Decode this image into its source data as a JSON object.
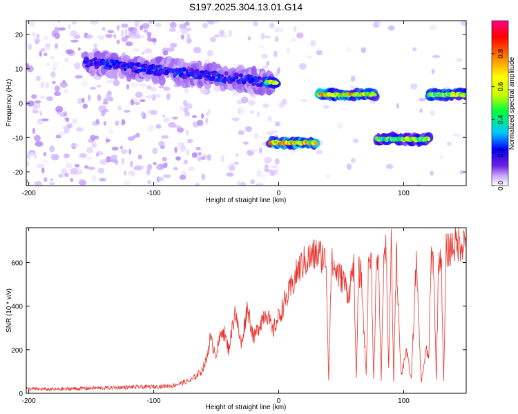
{
  "title": "S197.2025.304.13.01.G14",
  "chart_data": [
    {
      "type": "heatmap",
      "name": "spectrogram",
      "xlabel": "Height of straight line (km)",
      "ylabel": "Frequency (Hz)",
      "xlim": [
        -202,
        150
      ],
      "ylim": [
        -24,
        24
      ],
      "x_ticks": [
        -200,
        -100,
        0,
        100
      ],
      "y_ticks": [
        -20,
        -10,
        0,
        10,
        20
      ],
      "colorbar": {
        "label": "Normalized spectral amplitude",
        "range": [
          0,
          1
        ],
        "ticks": [
          0.0,
          0.2,
          0.4,
          0.6,
          0.8
        ],
        "tick_labels": [
          "0.0",
          "0.2",
          "0.4",
          "0.6",
          "0.8"
        ],
        "colors": [
          "#ffffff",
          "#c8a8ff",
          "#7020e0",
          "#0000ff",
          "#00c8ff",
          "#00ff40",
          "#c8ff00",
          "#ffff00",
          "#ff8000",
          "#ff0000",
          "#ff0080"
        ]
      },
      "tracks": [
        {
          "x_range": [
            -155,
            -5
          ],
          "freq": [
            12,
            6
          ],
          "amplitude": 0.35,
          "spread": 6,
          "note": "scattered violet blobs, descending"
        },
        {
          "x_range": [
            -10,
            -2
          ],
          "freq": [
            6,
            6
          ],
          "amplitude": 0.75,
          "spread": 1
        },
        {
          "x_range": [
            -7,
            30
          ],
          "freq": [
            -11.5,
            -11.5
          ],
          "amplitude": 0.85,
          "spread": 1.2
        },
        {
          "x_range": [
            32,
            77
          ],
          "freq": [
            2.5,
            2.5
          ],
          "amplitude": 0.85,
          "spread": 1.2
        },
        {
          "x_range": [
            78,
            120
          ],
          "freq": [
            -10.5,
            -10.5
          ],
          "amplitude": 0.65,
          "spread": 1.5
        },
        {
          "x_range": [
            120,
            150
          ],
          "freq": [
            2.5,
            2.5
          ],
          "amplitude": 0.75,
          "spread": 1.2
        }
      ]
    },
    {
      "type": "line",
      "name": "snr",
      "xlabel": "Height of straight line (km)",
      "ylabel": "SNR (10 * v/v)",
      "xlim": [
        -202,
        150
      ],
      "ylim": [
        0,
        760
      ],
      "x_ticks": [
        -200,
        -100,
        0,
        100
      ],
      "y_ticks": [
        0,
        200,
        400,
        600
      ],
      "color": "#e8302a",
      "series": [
        {
          "name": "SNR",
          "x": [
            -202,
            -180,
            -160,
            -140,
            -120,
            -100,
            -85,
            -70,
            -62,
            -58,
            -55,
            -50,
            -45,
            -40,
            -35,
            -30,
            -25,
            -20,
            -15,
            -10,
            -5,
            0,
            5,
            10,
            15,
            20,
            25,
            30,
            35,
            38,
            40,
            42,
            44,
            46,
            48,
            52,
            56,
            60,
            62,
            64,
            66,
            70,
            72,
            74,
            76,
            78,
            80,
            82,
            84,
            86,
            88,
            90,
            92,
            94,
            98,
            102,
            106,
            110,
            114,
            118,
            120,
            122,
            124,
            126,
            128,
            130,
            132,
            134,
            136,
            138,
            140,
            145,
            150
          ],
          "y": [
            20,
            18,
            22,
            25,
            28,
            30,
            35,
            60,
            100,
            150,
            250,
            180,
            300,
            200,
            380,
            220,
            400,
            250,
            320,
            380,
            280,
            350,
            420,
            480,
            560,
            600,
            620,
            640,
            630,
            600,
            60,
            600,
            580,
            560,
            540,
            520,
            450,
            600,
            60,
            560,
            540,
            80,
            620,
            600,
            60,
            560,
            580,
            60,
            620,
            650,
            100,
            700,
            60,
            640,
            80,
            200,
            60,
            600,
            50,
            200,
            160,
            620,
            600,
            60,
            620,
            640,
            50,
            650,
            660,
            670,
            680,
            690,
            700
          ]
        }
      ]
    }
  ]
}
